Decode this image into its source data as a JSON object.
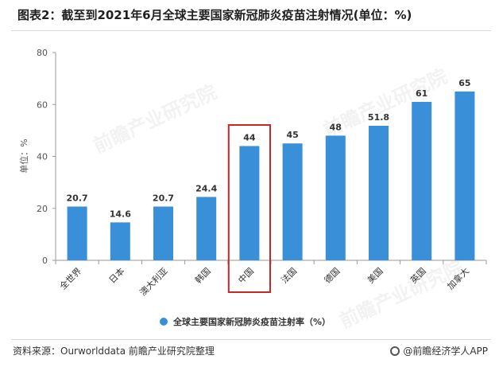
{
  "title": "图表2：截至到2021年6月全球主要国家新冠肺炎疫苗注射情况(单位：%)",
  "source": "资料来源：Ourworlddata 前瞻产业研究院整理",
  "brand": "@前瞻经济学人APP",
  "watermark": "前瞻产业研究院",
  "colors": {
    "bar": "#3a8fd9",
    "highlight_box": "#c62828",
    "axis": "#999999",
    "grid": "#e6e6e6"
  },
  "chart_data": {
    "type": "bar",
    "title": "图表2：截至到2021年6月全球主要国家新冠肺炎疫苗注射情况(单位：%)",
    "ylabel": "单位：%",
    "xlabel": "",
    "ylim": [
      0,
      80
    ],
    "yticks": [
      0,
      20,
      40,
      60,
      80
    ],
    "grid": false,
    "legend_position": "bottom",
    "categories": [
      "全世界",
      "日本",
      "澳大利亚",
      "韩国",
      "中国",
      "法国",
      "德国",
      "美国",
      "英国",
      "加拿大"
    ],
    "series": [
      {
        "name": "全球主要国家新冠肺炎疫苗注射率（%）",
        "values": [
          20.7,
          14.6,
          20.7,
          24.4,
          44,
          45,
          48,
          51.8,
          61,
          65
        ]
      }
    ],
    "highlight_category": "中国"
  }
}
